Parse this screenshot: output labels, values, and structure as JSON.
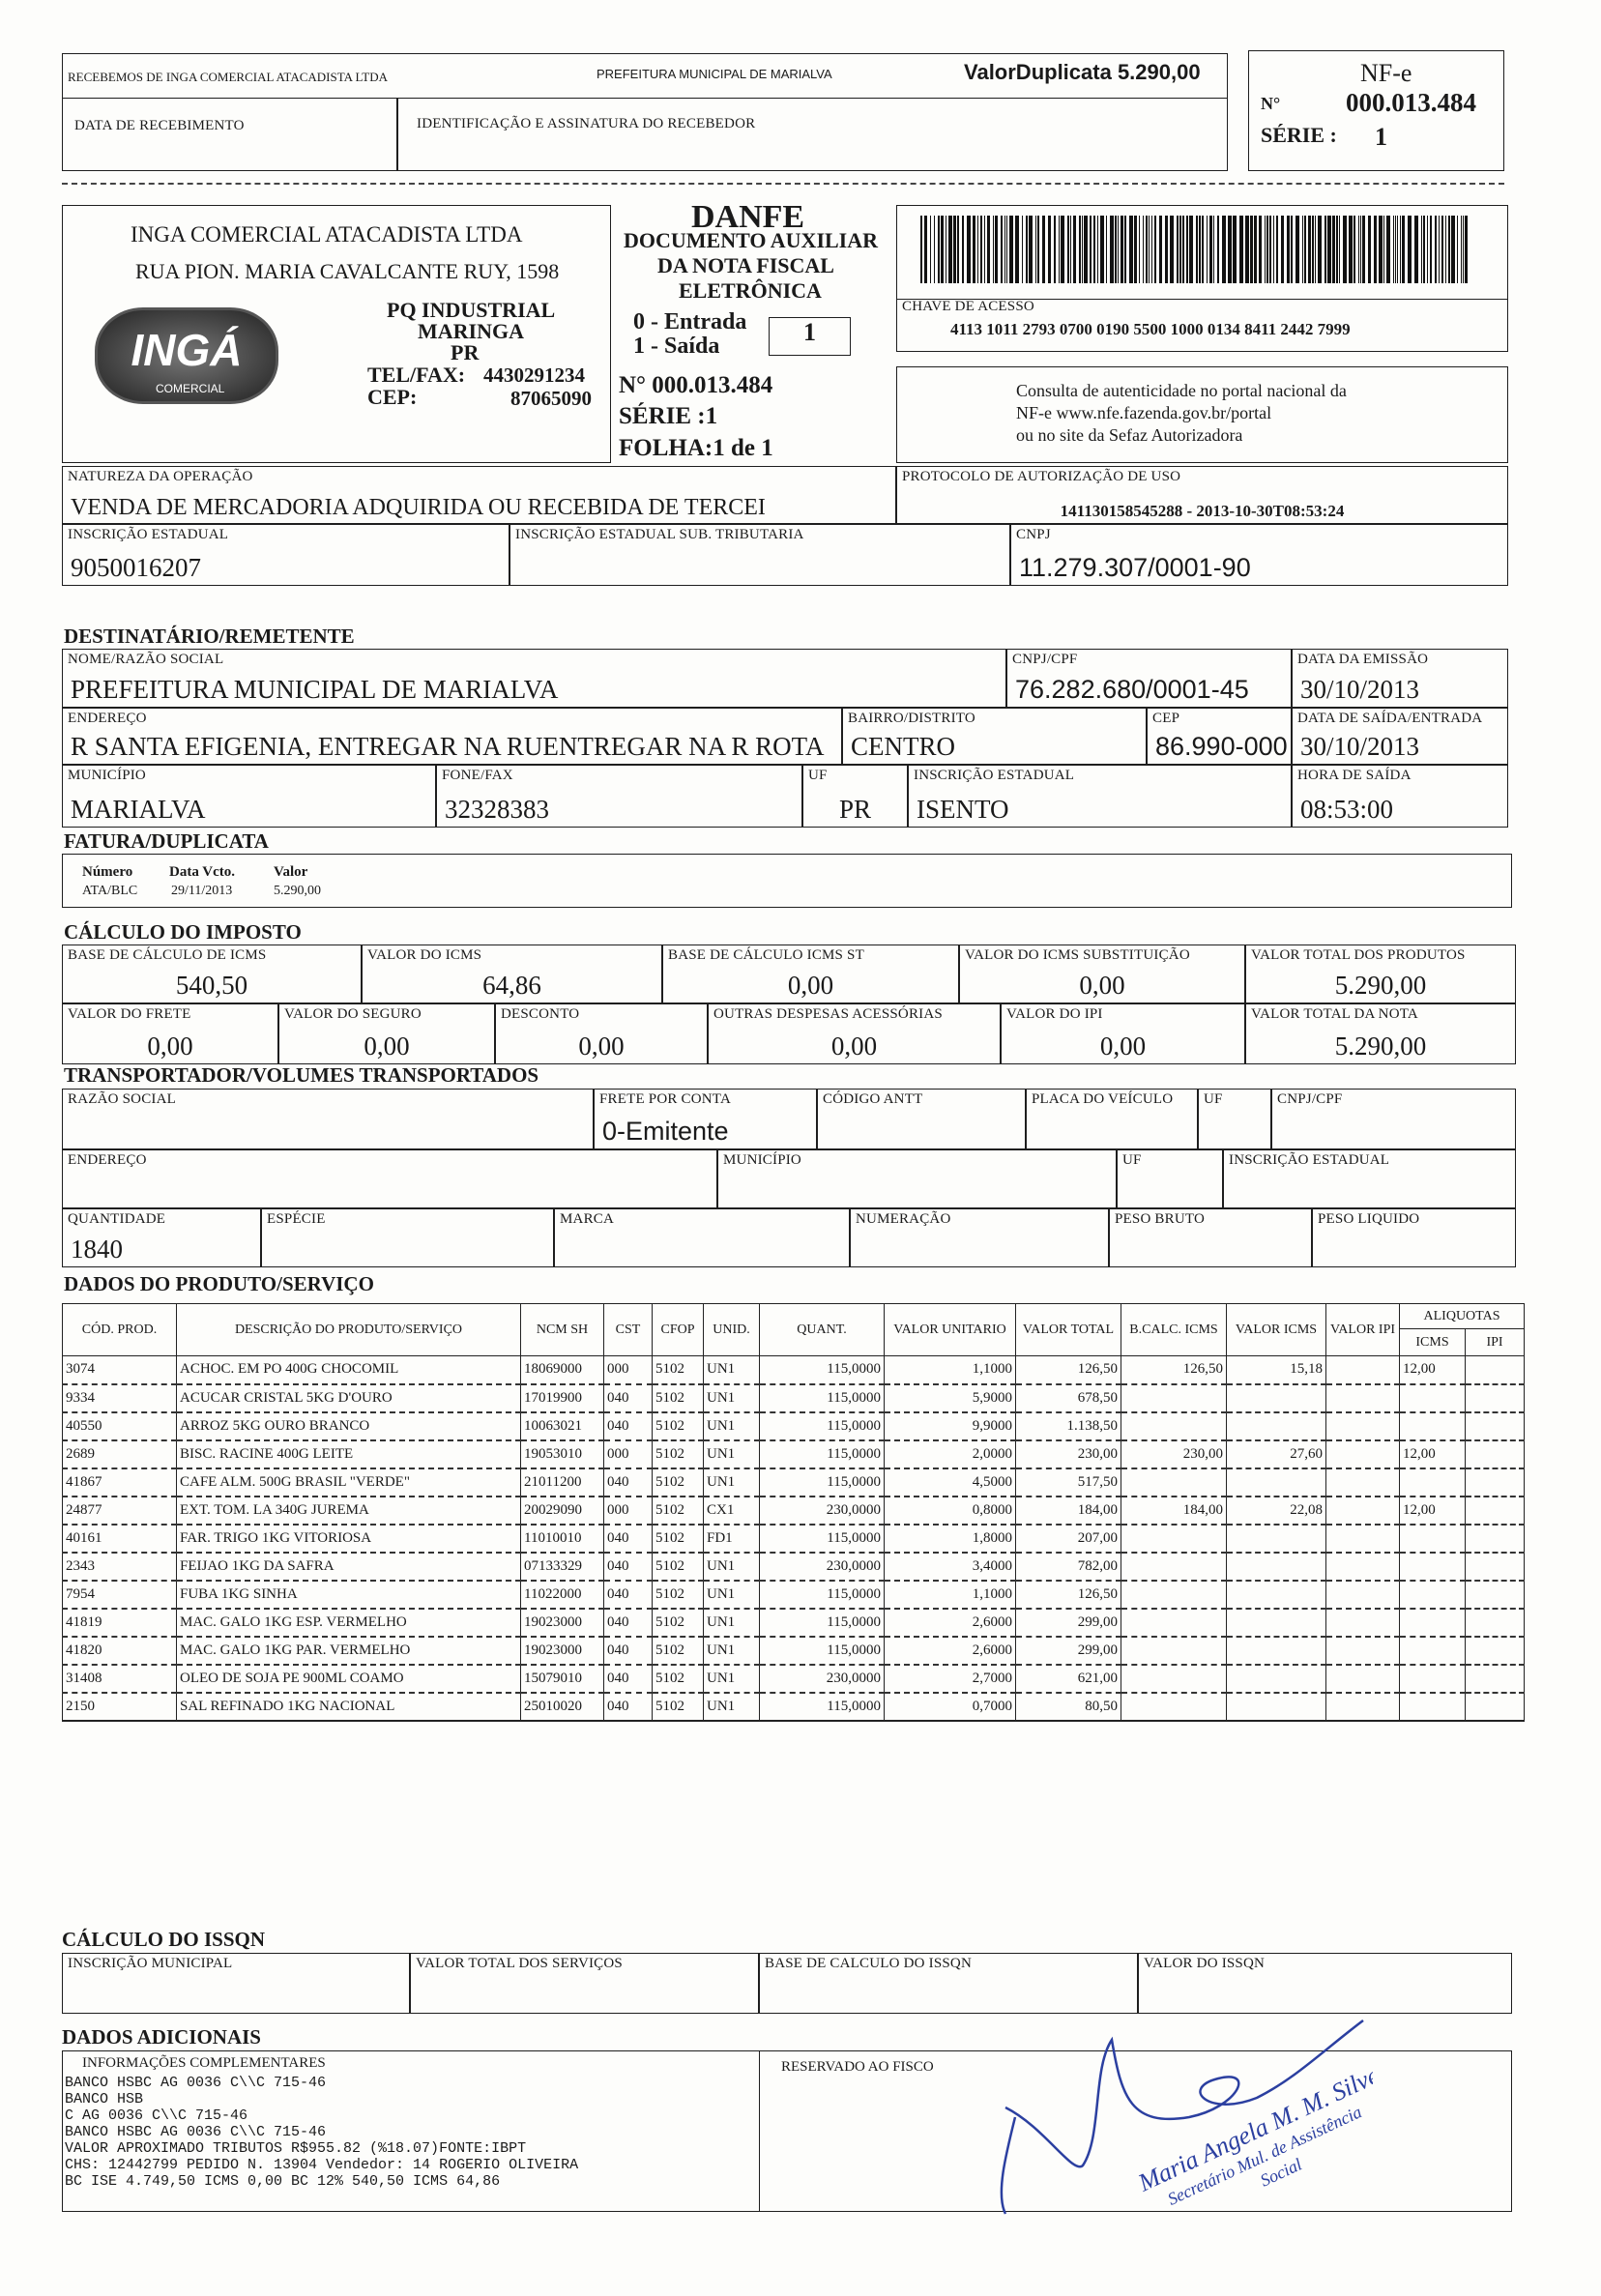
{
  "receipt": {
    "received_from": "RECEBEMOS DE INGA COMERCIAL ATACADISTA LTDA",
    "recipient": "PREFEITURA MUNICIPAL DE MARIALVA",
    "valor_duplicata": "ValorDuplicata 5.290,00",
    "date_label": "DATA DE RECEBIMENTO",
    "ident_label": "IDENTIFICAÇÃO E ASSINATURA DO RECEBEDOR"
  },
  "nfe": {
    "title": "NF-e",
    "no_label": "N°",
    "number": "000.013.484",
    "serie_label": "SÉRIE :",
    "serie": "1"
  },
  "emitter": {
    "name": "INGA COMERCIAL ATACADISTA LTDA",
    "address": "RUA PION. MARIA CAVALCANTE RUY, 1598",
    "district": "PQ INDUSTRIAL",
    "city": "MARINGA",
    "state": "PR",
    "tel_label": "TEL/FAX:",
    "tel": "4430291234",
    "cep_label": "CEP:",
    "cep": "87065090",
    "logo": "INGÁ",
    "logo_sub": "COMERCIAL"
  },
  "danfe": {
    "title": "DANFE",
    "subtitle": [
      "DOCUMENTO AUXILIAR",
      "DA NOTA FISCAL",
      "ELETRÔNICA"
    ],
    "entrada": "0 - Entrada",
    "saida": "1 - Saída",
    "tipo": "1",
    "numero": "N° 000.013.484",
    "serie": "SÉRIE :1",
    "folha": "FOLHA:1 de 1"
  },
  "chave": {
    "label": "CHAVE DE ACESSO",
    "value": "4113 1011 2793 0700 0190 5500 1000 0134 8411 2442 7999"
  },
  "consulta": [
    "Consulta de autenticidade no portal nacional da",
    "NF-e www.nfe.fazenda.gov.br/portal",
    "ou no site da Sefaz Autorizadora"
  ],
  "operacao": {
    "natureza_label": "NATUREZA DA OPERAÇÃO",
    "natureza": "VENDA DE MERCADORIA ADQUIRIDA OU RECEBIDA DE TERCEI",
    "protocolo_label": "PROTOCOLO DE AUTORIZAÇÃO DE USO",
    "protocolo": "141130158545288 -  2013-10-30T08:53:24",
    "ie_label": "INSCRIÇÃO ESTADUAL",
    "ie": "9050016207",
    "ie_st_label": "INSCRIÇÃO ESTADUAL SUB. TRIBUTARIA",
    "cnpj_label": "CNPJ",
    "cnpj": "11.279.307/0001-90"
  },
  "dest": {
    "heading": "DESTINATÁRIO/REMETENTE",
    "nome_label": "NOME/RAZÃO SOCIAL",
    "nome": "PREFEITURA MUNICIPAL DE MARIALVA",
    "cnpj_label": "CNPJ/CPF",
    "cnpj": "76.282.680/0001-45",
    "emissao_label": "DATA DA EMISSÃO",
    "emissao": "30/10/2013",
    "endereco_label": "ENDEREÇO",
    "endereco": "R SANTA EFIGENIA, ENTREGAR NA RUENTREGAR NA R ROTA",
    "bairro_label": "BAIRRO/DISTRITO",
    "bairro": "CENTRO",
    "cep_label": "CEP",
    "cep": "86.990-000",
    "saida_label": "DATA DE SAÍDA/ENTRADA",
    "saida": "30/10/2013",
    "municipio_label": "MUNICÍPIO",
    "municipio": "MARIALVA",
    "fone_label": "FONE/FAX",
    "fone": "32328383",
    "uf_label": "UF",
    "uf": "PR",
    "ie_label": "INSCRIÇÃO ESTADUAL",
    "ie": "ISENTO",
    "hora_label": "HORA DE SAÍDA",
    "hora": "08:53:00"
  },
  "fatura": {
    "heading": "FATURA/DUPLICATA",
    "headers": [
      "Número",
      "Data Vcto.",
      "Valor"
    ],
    "row": [
      "ATA/BLC",
      "29/11/2013",
      "5.290,00"
    ]
  },
  "imposto": {
    "heading": "CÁLCULO DO IMPOSTO",
    "bc_icms_label": "BASE DE CÁLCULO DE ICMS",
    "bc_icms": "540,50",
    "icms_label": "VALOR DO ICMS",
    "icms": "64,86",
    "bc_st_label": "BASE DE CÁLCULO ICMS ST",
    "bc_st": "0,00",
    "icms_st_label": "VALOR DO ICMS SUBSTITUIÇÃO",
    "icms_st": "0,00",
    "total_prod_label": "VALOR TOTAL DOS PRODUTOS",
    "total_prod": "5.290,00",
    "frete_label": "VALOR DO FRETE",
    "frete": "0,00",
    "seguro_label": "VALOR DO SEGURO",
    "seguro": "0,00",
    "desconto_label": "DESCONTO",
    "desconto": "0,00",
    "outras_label": "OUTRAS DESPESAS ACESSÓRIAS",
    "outras": "0,00",
    "ipi_label": "VALOR DO IPI",
    "ipi": "0,00",
    "total_nota_label": "VALOR TOTAL DA NOTA",
    "total_nota": "5.290,00"
  },
  "transp": {
    "heading": "TRANSPORTADOR/VOLUMES TRANSPORTADOS",
    "razao_label": "RAZÃO SOCIAL",
    "frete_label": "FRETE POR CONTA",
    "frete": "0-Emitente",
    "antt_label": "CÓDIGO ANTT",
    "placa_label": "PLACA DO VEÍCULO",
    "uf_label": "UF",
    "cnpj_label": "CNPJ/CPF",
    "endereco_label": "ENDEREÇO",
    "municipio_label": "MUNICÍPIO",
    "uf2_label": "UF",
    "ie_label": "INSCRIÇÃO ESTADUAL",
    "qtd_label": "QUANTIDADE",
    "qtd": "1840",
    "especie_label": "ESPÉCIE",
    "marca_label": "MARCA",
    "numeracao_label": "NUMERAÇÃO",
    "bruto_label": "PESO BRUTO",
    "liquido_label": "PESO LIQUIDO"
  },
  "produtos": {
    "heading": "DADOS DO PRODUTO/SERVIÇO",
    "headers": [
      "CÓD. PROD.",
      "DESCRIÇÃO DO PRODUTO/SERVIÇO",
      "NCM SH",
      "CST",
      "CFOP",
      "UNID.",
      "QUANT.",
      "VALOR UNITARIO",
      "VALOR TOTAL",
      "B.CALC. ICMS",
      "VALOR ICMS",
      "VALOR IPI",
      "ALIQUOTAS",
      "ICMS",
      "IPI"
    ],
    "rows": [
      [
        "3074",
        "ACHOC. EM PO 400G CHOCOMIL",
        "18069000",
        "000",
        "5102",
        "UN1",
        "115,0000",
        "1,1000",
        "126,50",
        "126,50",
        "15,18",
        "",
        "12,00",
        ""
      ],
      [
        "9334",
        "ACUCAR CRISTAL 5KG D'OURO",
        "17019900",
        "040",
        "5102",
        "UN1",
        "115,0000",
        "5,9000",
        "678,50",
        "",
        "",
        "",
        "",
        ""
      ],
      [
        "40550",
        "ARROZ 5KG OURO BRANCO",
        "10063021",
        "040",
        "5102",
        "UN1",
        "115,0000",
        "9,9000",
        "1.138,50",
        "",
        "",
        "",
        "",
        ""
      ],
      [
        "2689",
        "BISC. RACINE 400G LEITE",
        "19053010",
        "000",
        "5102",
        "UN1",
        "115,0000",
        "2,0000",
        "230,00",
        "230,00",
        "27,60",
        "",
        "12,00",
        ""
      ],
      [
        "41867",
        "CAFE ALM. 500G BRASIL \"VERDE\"",
        "21011200",
        "040",
        "5102",
        "UN1",
        "115,0000",
        "4,5000",
        "517,50",
        "",
        "",
        "",
        "",
        ""
      ],
      [
        "24877",
        "EXT. TOM. LA 340G JUREMA",
        "20029090",
        "000",
        "5102",
        "CX1",
        "230,0000",
        "0,8000",
        "184,00",
        "184,00",
        "22,08",
        "",
        "12,00",
        ""
      ],
      [
        "40161",
        "FAR. TRIGO 1KG VITORIOSA",
        "11010010",
        "040",
        "5102",
        "FD1",
        "115,0000",
        "1,8000",
        "207,00",
        "",
        "",
        "",
        "",
        ""
      ],
      [
        "2343",
        "FEIJAO 1KG DA SAFRA",
        "07133329",
        "040",
        "5102",
        "UN1",
        "230,0000",
        "3,4000",
        "782,00",
        "",
        "",
        "",
        "",
        ""
      ],
      [
        "7954",
        "FUBA 1KG SINHA",
        "11022000",
        "040",
        "5102",
        "UN1",
        "115,0000",
        "1,1000",
        "126,50",
        "",
        "",
        "",
        "",
        ""
      ],
      [
        "41819",
        "MAC. GALO 1KG ESP. VERMELHO",
        "19023000",
        "040",
        "5102",
        "UN1",
        "115,0000",
        "2,6000",
        "299,00",
        "",
        "",
        "",
        "",
        ""
      ],
      [
        "41820",
        "MAC. GALO 1KG PAR. VERMELHO",
        "19023000",
        "040",
        "5102",
        "UN1",
        "115,0000",
        "2,6000",
        "299,00",
        "",
        "",
        "",
        "",
        ""
      ],
      [
        "31408",
        "OLEO DE SOJA PE 900ML COAMO",
        "15079010",
        "040",
        "5102",
        "UN1",
        "230,0000",
        "2,7000",
        "621,00",
        "",
        "",
        "",
        "",
        ""
      ],
      [
        "2150",
        "SAL REFINADO 1KG NACIONAL",
        "25010020",
        "040",
        "5102",
        "UN1",
        "115,0000",
        "0,7000",
        "80,50",
        "",
        "",
        "",
        "",
        ""
      ]
    ]
  },
  "issqn": {
    "heading": "CÁLCULO DO ISSQN",
    "im_label": "INSCRIÇÃO MUNICIPAL",
    "servicos_label": "VALOR TOTAL DOS SERVIÇOS",
    "base_label": "BASE DE CALCULO DO ISSQN",
    "valor_label": "VALOR DO ISSQN"
  },
  "adicionais": {
    "heading": "DADOS ADICIONAIS",
    "info_label": "INFORMAÇÕES COMPLEMENTARES",
    "info": [
      "BANCO HSBC AG 0036 C\\\\C 715-46",
      "BANCO HSB",
      "C AG 0036 C\\\\C 715-46",
      "BANCO HSBC AG 0036 C\\\\C 715-46",
      "VALOR APROXIMADO TRIBUTOS R$955.82 (%18.07)FONTE:IBPT",
      "CHS: 12442799 PEDIDO N. 13904 Vendedor: 14 ROGERIO OLIVEIRA",
      "BC ISE 4.749,50 ICMS 0,00      BC 12% 540,50 ICMS 64,86"
    ],
    "fisco_label": "RESERVADO AO FISCO"
  },
  "stamp": {
    "lines": [
      "Maria Angela M. M. Silvestri",
      "Secretário Mul. de Assistência",
      "Social"
    ],
    "ink": "#2b3fa0"
  }
}
